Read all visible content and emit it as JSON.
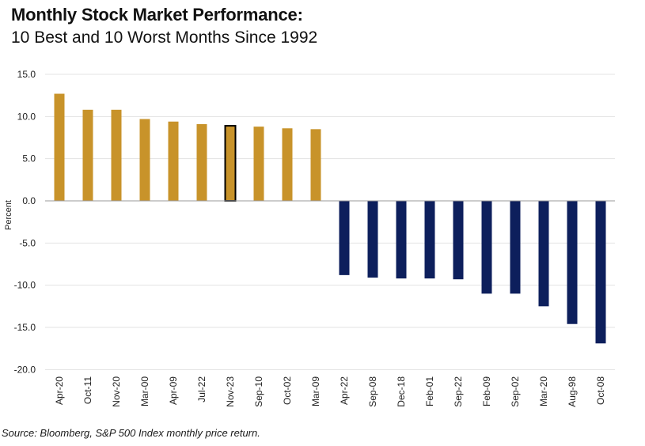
{
  "title_line1": "Monthly Stock Market Performance:",
  "title_line2": "10 Best and 10 Worst Months Since 1992",
  "source": "Source: Bloomberg, S&P 500 Index monthly price return.",
  "colors": {
    "best": "#C8932A",
    "worst": "#0D1F5C",
    "highlight_border": "#000000"
  },
  "chart_data": {
    "type": "bar",
    "title": "Monthly Stock Market Performance: 10 Best and 10 Worst Months Since 1992",
    "xlabel": "",
    "ylabel": "Percent",
    "ylim": [
      -20,
      15
    ],
    "yticks": [
      "15.0",
      "10.0",
      "5.0",
      "0.0",
      "-5.0",
      "-10.0",
      "-15.0",
      "-20.0"
    ],
    "ytick_values": [
      15,
      10,
      5,
      0,
      -5,
      -10,
      -15,
      -20
    ],
    "grid": true,
    "highlight": "Nov-23",
    "categories": [
      "Apr-20",
      "Oct-11",
      "Nov-20",
      "Mar-00",
      "Apr-09",
      "Jul-22",
      "Nov-23",
      "Sep-10",
      "Oct-02",
      "Mar-09",
      "Apr-22",
      "Sep-08",
      "Dec-18",
      "Feb-01",
      "Sep-22",
      "Feb-09",
      "Sep-02",
      "Mar-20",
      "Aug-98",
      "Oct-08"
    ],
    "values": [
      12.7,
      10.8,
      10.8,
      9.7,
      9.4,
      9.1,
      8.9,
      8.8,
      8.6,
      8.5,
      -8.8,
      -9.1,
      -9.2,
      -9.2,
      -9.3,
      -11.0,
      -11.0,
      -12.5,
      -14.6,
      -16.9
    ]
  }
}
